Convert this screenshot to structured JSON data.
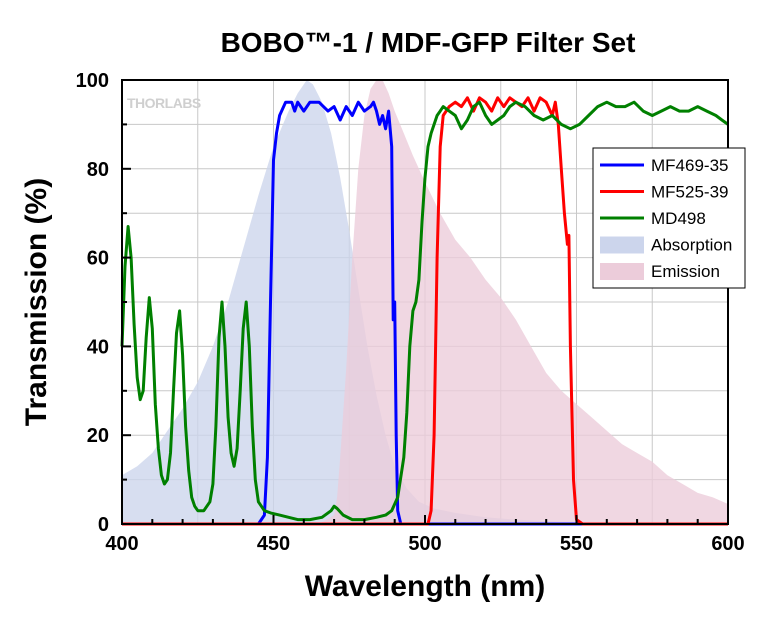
{
  "chart_data": {
    "type": "area",
    "title": "BOBO™-1 / MDF-GFP Filter Set",
    "xlabel": "Wavelength (nm)",
    "ylabel": "Transmission (%)",
    "xlim": [
      400,
      600
    ],
    "ylim": [
      0,
      100
    ],
    "x_ticks": [
      400,
      450,
      500,
      550,
      600
    ],
    "y_ticks": [
      0,
      20,
      40,
      60,
      80,
      100
    ],
    "grid": true,
    "legend_position": "right",
    "watermark": "THORLABS",
    "series": [
      {
        "name": "MF469-35",
        "kind": "line",
        "color": "#0000ff",
        "points": [
          [
            400,
            0
          ],
          [
            445,
            0
          ],
          [
            447,
            2
          ],
          [
            448,
            15
          ],
          [
            449,
            50
          ],
          [
            450,
            82
          ],
          [
            451,
            88
          ],
          [
            452,
            92
          ],
          [
            454,
            95
          ],
          [
            456,
            95
          ],
          [
            457,
            93
          ],
          [
            458,
            95
          ],
          [
            460,
            93
          ],
          [
            462,
            95
          ],
          [
            465,
            95
          ],
          [
            468,
            93
          ],
          [
            470,
            94
          ],
          [
            472,
            91
          ],
          [
            474,
            94
          ],
          [
            476,
            92
          ],
          [
            478,
            95
          ],
          [
            480,
            93
          ],
          [
            482,
            94
          ],
          [
            483,
            95
          ],
          [
            484,
            93
          ],
          [
            485,
            90
          ],
          [
            486,
            92
          ],
          [
            487,
            89
          ],
          [
            488,
            93
          ],
          [
            489,
            85
          ],
          [
            489.5,
            46
          ],
          [
            490,
            50
          ],
          [
            490.5,
            20
          ],
          [
            491,
            3
          ],
          [
            492,
            0
          ],
          [
            600,
            0
          ]
        ]
      },
      {
        "name": "MF525-39",
        "kind": "line",
        "color": "#ff0000",
        "points": [
          [
            400,
            0
          ],
          [
            501,
            0
          ],
          [
            502,
            3
          ],
          [
            503,
            20
          ],
          [
            504,
            60
          ],
          [
            505,
            85
          ],
          [
            506,
            92
          ],
          [
            508,
            94
          ],
          [
            510,
            95
          ],
          [
            512,
            94
          ],
          [
            514,
            96
          ],
          [
            516,
            93
          ],
          [
            518,
            96
          ],
          [
            520,
            95
          ],
          [
            522,
            93
          ],
          [
            524,
            96
          ],
          [
            526,
            94
          ],
          [
            528,
            96
          ],
          [
            530,
            95
          ],
          [
            532,
            94
          ],
          [
            534,
            96
          ],
          [
            536,
            93
          ],
          [
            538,
            96
          ],
          [
            540,
            95
          ],
          [
            542,
            92
          ],
          [
            543,
            95
          ],
          [
            544,
            90
          ],
          [
            545,
            80
          ],
          [
            546,
            70
          ],
          [
            547,
            63
          ],
          [
            547.5,
            65
          ],
          [
            548,
            40
          ],
          [
            549,
            10
          ],
          [
            550,
            1
          ],
          [
            552,
            0
          ],
          [
            600,
            0
          ]
        ]
      },
      {
        "name": "MD498",
        "kind": "line",
        "color": "#008000",
        "points": [
          [
            400,
            40
          ],
          [
            401,
            58
          ],
          [
            402,
            67
          ],
          [
            403,
            60
          ],
          [
            404,
            45
          ],
          [
            405,
            33
          ],
          [
            406,
            28
          ],
          [
            407,
            30
          ],
          [
            408,
            42
          ],
          [
            409,
            51
          ],
          [
            410,
            44
          ],
          [
            411,
            27
          ],
          [
            412,
            17
          ],
          [
            413,
            11
          ],
          [
            414,
            9
          ],
          [
            415,
            10
          ],
          [
            416,
            16
          ],
          [
            417,
            30
          ],
          [
            418,
            43
          ],
          [
            419,
            48
          ],
          [
            420,
            38
          ],
          [
            421,
            22
          ],
          [
            422,
            12
          ],
          [
            423,
            6
          ],
          [
            424,
            4
          ],
          [
            425,
            3
          ],
          [
            427,
            3
          ],
          [
            429,
            5
          ],
          [
            430,
            9
          ],
          [
            431,
            22
          ],
          [
            432,
            42
          ],
          [
            433,
            50
          ],
          [
            434,
            40
          ],
          [
            435,
            24
          ],
          [
            436,
            16
          ],
          [
            437,
            13
          ],
          [
            438,
            17
          ],
          [
            439,
            30
          ],
          [
            440,
            44
          ],
          [
            441,
            50
          ],
          [
            442,
            40
          ],
          [
            443,
            22
          ],
          [
            444,
            10
          ],
          [
            445,
            5
          ],
          [
            447,
            3
          ],
          [
            449,
            2.5
          ],
          [
            452,
            2
          ],
          [
            455,
            1.5
          ],
          [
            458,
            1
          ],
          [
            462,
            1
          ],
          [
            466,
            1.5
          ],
          [
            469,
            3
          ],
          [
            470,
            4
          ],
          [
            471,
            3.5
          ],
          [
            473,
            2
          ],
          [
            476,
            1
          ],
          [
            480,
            1
          ],
          [
            484,
            1.5
          ],
          [
            487,
            2
          ],
          [
            489,
            3
          ],
          [
            491,
            6
          ],
          [
            493,
            15
          ],
          [
            494,
            25
          ],
          [
            495,
            40
          ],
          [
            496,
            48
          ],
          [
            497,
            50
          ],
          [
            498,
            55
          ],
          [
            499,
            68
          ],
          [
            500,
            78
          ],
          [
            501,
            85
          ],
          [
            502,
            88
          ],
          [
            503,
            90
          ],
          [
            504,
            92
          ],
          [
            505,
            93
          ],
          [
            506,
            94
          ],
          [
            508,
            93
          ],
          [
            510,
            92
          ],
          [
            512,
            89
          ],
          [
            514,
            91
          ],
          [
            516,
            94
          ],
          [
            518,
            95
          ],
          [
            520,
            92
          ],
          [
            522,
            90
          ],
          [
            524,
            91
          ],
          [
            526,
            92
          ],
          [
            528,
            94
          ],
          [
            530,
            95
          ],
          [
            533,
            94
          ],
          [
            536,
            92
          ],
          [
            539,
            91
          ],
          [
            542,
            92
          ],
          [
            545,
            90
          ],
          [
            548,
            89
          ],
          [
            551,
            90
          ],
          [
            554,
            92
          ],
          [
            557,
            94
          ],
          [
            560,
            95
          ],
          [
            563,
            94
          ],
          [
            566,
            94
          ],
          [
            569,
            95
          ],
          [
            572,
            93
          ],
          [
            575,
            92
          ],
          [
            578,
            93
          ],
          [
            581,
            94
          ],
          [
            584,
            93
          ],
          [
            587,
            93
          ],
          [
            590,
            94
          ],
          [
            593,
            93
          ],
          [
            596,
            92
          ],
          [
            598,
            91
          ],
          [
            600,
            90
          ]
        ]
      },
      {
        "name": "Absorption",
        "kind": "area",
        "color": "#ccd5ec",
        "points": [
          [
            400,
            11
          ],
          [
            405,
            13
          ],
          [
            410,
            16
          ],
          [
            415,
            21
          ],
          [
            420,
            26
          ],
          [
            425,
            32
          ],
          [
            430,
            40
          ],
          [
            435,
            50
          ],
          [
            440,
            62
          ],
          [
            445,
            74
          ],
          [
            450,
            85
          ],
          [
            455,
            93
          ],
          [
            458,
            97
          ],
          [
            461,
            100
          ],
          [
            463,
            99
          ],
          [
            466,
            95
          ],
          [
            469,
            88
          ],
          [
            472,
            78
          ],
          [
            475,
            66
          ],
          [
            478,
            53
          ],
          [
            481,
            40
          ],
          [
            484,
            29
          ],
          [
            487,
            20
          ],
          [
            490,
            13
          ],
          [
            494,
            8
          ],
          [
            498,
            5
          ],
          [
            503,
            3.5
          ],
          [
            510,
            2.5
          ],
          [
            520,
            1.5
          ],
          [
            530,
            1
          ],
          [
            545,
            0.5
          ],
          [
            600,
            0.3
          ]
        ]
      },
      {
        "name": "Emission",
        "kind": "area",
        "color": "#ecccda",
        "points": [
          [
            400,
            0
          ],
          [
            465,
            0
          ],
          [
            470,
            2
          ],
          [
            471,
            6
          ],
          [
            472,
            15
          ],
          [
            474,
            35
          ],
          [
            476,
            60
          ],
          [
            478,
            80
          ],
          [
            480,
            92
          ],
          [
            482,
            98
          ],
          [
            484,
            100
          ],
          [
            486,
            100
          ],
          [
            488,
            97
          ],
          [
            490,
            93
          ],
          [
            493,
            88
          ],
          [
            496,
            83
          ],
          [
            500,
            77
          ],
          [
            505,
            70
          ],
          [
            510,
            64
          ],
          [
            515,
            60
          ],
          [
            520,
            55
          ],
          [
            525,
            51
          ],
          [
            530,
            46
          ],
          [
            535,
            40
          ],
          [
            540,
            34
          ],
          [
            545,
            30
          ],
          [
            550,
            27
          ],
          [
            555,
            24
          ],
          [
            560,
            21
          ],
          [
            565,
            18
          ],
          [
            570,
            16
          ],
          [
            575,
            14
          ],
          [
            580,
            11
          ],
          [
            585,
            9
          ],
          [
            590,
            7
          ],
          [
            595,
            6
          ],
          [
            600,
            4.5
          ]
        ]
      }
    ]
  }
}
